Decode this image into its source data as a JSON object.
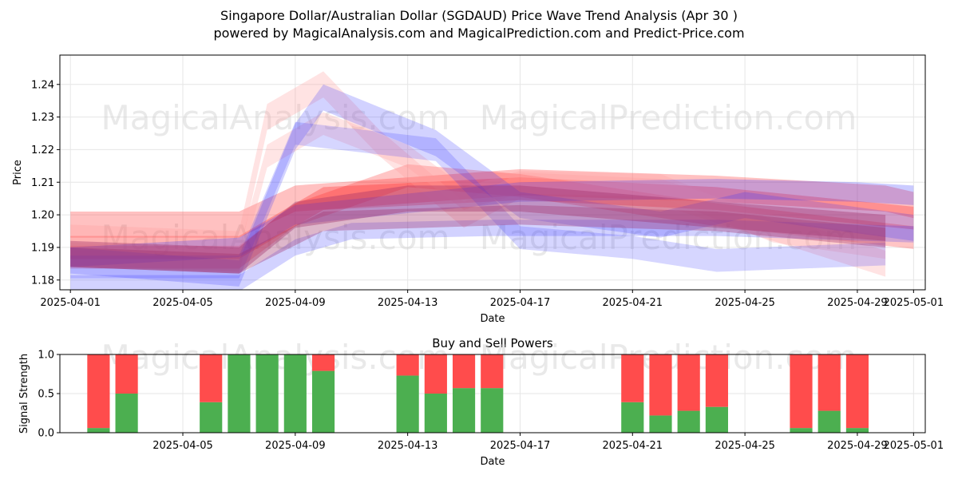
{
  "header": {
    "title": "Singapore Dollar/Australian Dollar (SGDAUD) Price Wave Trend Analysis (Apr 30 )",
    "subtitle": "powered by MagicalAnalysis.com and MagicalPrediction.com and Predict-Price.com"
  },
  "watermarks": {
    "left": "MagicalAnalysis.com",
    "right": "MagicalPrediction.com"
  },
  "colors": {
    "buy": "#4caf50",
    "sell": "#ff4c4c",
    "wave_red": "#ff2020",
    "wave_blue": "#3030ff",
    "wave_pink": "#ff9a9a",
    "grid": "#e6e6e6"
  },
  "chart_data": [
    {
      "type": "area",
      "title": "",
      "xlabel": "Date",
      "ylabel": "Price",
      "x_range": [
        "2025-03-31T15:00",
        "2025-05-01T10:00"
      ],
      "ylim": [
        1.177,
        1.249
      ],
      "x_ticks": [
        "2025-04-01",
        "2025-04-05",
        "2025-04-09",
        "2025-04-13",
        "2025-04-17",
        "2025-04-21",
        "2025-04-25",
        "2025-04-29",
        "2025-05-01"
      ],
      "y_ticks": [
        1.18,
        1.19,
        1.2,
        1.21,
        1.22,
        1.23,
        1.24
      ],
      "grid": true,
      "series": [
        {
          "color": "red",
          "band": 0.008,
          "opacity": 0.28,
          "points": [
            [
              "2025-04-01",
              1.197
            ],
            [
              "2025-04-07",
              1.197
            ],
            [
              "2025-04-09",
              1.205
            ],
            [
              "2025-04-17",
              1.21
            ],
            [
              "2025-04-24",
              1.208
            ],
            [
              "2025-04-30",
              1.205
            ],
            [
              "2025-05-01",
              1.203
            ]
          ]
        },
        {
          "color": "red",
          "band": 0.007,
          "opacity": 0.3,
          "points": [
            [
              "2025-04-01",
              1.19
            ],
            [
              "2025-04-07",
              1.19
            ],
            [
              "2025-04-10",
              1.205
            ],
            [
              "2025-04-17",
              1.208
            ],
            [
              "2025-04-24",
              1.205
            ],
            [
              "2025-05-01",
              1.199
            ]
          ]
        },
        {
          "color": "red",
          "band": 0.007,
          "opacity": 0.26,
          "points": [
            [
              "2025-04-01",
              1.187
            ],
            [
              "2025-04-07",
              1.187
            ],
            [
              "2025-04-09",
              1.2
            ],
            [
              "2025-04-13",
              1.212
            ],
            [
              "2025-04-17",
              1.209
            ],
            [
              "2025-04-24",
              1.2
            ],
            [
              "2025-05-01",
              1.193
            ]
          ]
        },
        {
          "color": "pink",
          "band": 0.008,
          "opacity": 0.28,
          "points": [
            [
              "2025-04-01",
              1.193
            ],
            [
              "2025-04-07",
              1.191
            ],
            [
              "2025-04-08",
              1.23
            ],
            [
              "2025-04-10",
              1.24
            ],
            [
              "2025-04-12",
              1.222
            ],
            [
              "2025-04-15",
              1.2
            ],
            [
              "2025-04-17",
              1.209
            ],
            [
              "2025-04-22",
              1.207
            ],
            [
              "2025-04-30",
              1.185
            ]
          ]
        },
        {
          "color": "pink",
          "band": 0.007,
          "opacity": 0.26,
          "points": [
            [
              "2025-04-01",
              1.188
            ],
            [
              "2025-04-07",
              1.186
            ],
            [
              "2025-04-08",
              1.218
            ],
            [
              "2025-04-10",
              1.228
            ],
            [
              "2025-04-13",
              1.218
            ],
            [
              "2025-04-15",
              1.205
            ],
            [
              "2025-04-17",
              1.21
            ],
            [
              "2025-04-22",
              1.209
            ],
            [
              "2025-04-26",
              1.195
            ],
            [
              "2025-04-30",
              1.19
            ]
          ]
        },
        {
          "color": "blue",
          "band": 0.008,
          "opacity": 0.22,
          "points": [
            [
              "2025-04-01",
              1.186
            ],
            [
              "2025-04-07",
              1.182
            ],
            [
              "2025-04-09",
              1.224
            ],
            [
              "2025-04-10",
              1.236
            ],
            [
              "2025-04-14",
              1.222
            ],
            [
              "2025-04-17",
              1.203
            ],
            [
              "2025-04-22",
              1.197
            ],
            [
              "2025-04-25",
              1.203
            ],
            [
              "2025-05-01",
              1.196
            ]
          ]
        },
        {
          "color": "blue",
          "band": 0.007,
          "opacity": 0.2,
          "points": [
            [
              "2025-04-01",
              1.184
            ],
            [
              "2025-04-07",
              1.184
            ],
            [
              "2025-04-09",
              1.225
            ],
            [
              "2025-04-14",
              1.22
            ],
            [
              "2025-04-17",
              1.193
            ],
            [
              "2025-04-21",
              1.19
            ],
            [
              "2025-04-24",
              1.186
            ],
            [
              "2025-04-30",
              1.188
            ]
          ]
        },
        {
          "color": "blue",
          "band": 0.005,
          "opacity": 0.22,
          "points": [
            [
              "2025-04-01",
              1.179
            ],
            [
              "2025-04-07",
              1.179
            ],
            [
              "2025-04-09",
              1.19
            ],
            [
              "2025-04-11",
              1.195
            ],
            [
              "2025-04-16",
              1.196
            ],
            [
              "2025-04-24",
              1.196
            ],
            [
              "2025-05-01",
              1.194
            ]
          ]
        },
        {
          "color": "blue",
          "band": 0.006,
          "opacity": 0.25,
          "points": [
            [
              "2025-04-01",
              1.187
            ],
            [
              "2025-04-07",
              1.19
            ],
            [
              "2025-04-09",
              1.2
            ],
            [
              "2025-04-17",
              1.207
            ],
            [
              "2025-04-24",
              1.208
            ],
            [
              "2025-04-29",
              1.207
            ],
            [
              "2025-05-01",
              1.206
            ]
          ]
        },
        {
          "color": "purple",
          "band": 0.008,
          "opacity": 0.38,
          "points": [
            [
              "2025-04-01",
              1.188
            ],
            [
              "2025-04-07",
              1.186
            ],
            [
              "2025-04-09",
              1.2
            ],
            [
              "2025-04-13",
              1.205
            ],
            [
              "2025-04-17",
              1.205
            ],
            [
              "2025-04-24",
              1.2
            ],
            [
              "2025-04-30",
              1.196
            ]
          ]
        },
        {
          "color": "purple",
          "band": 0.006,
          "opacity": 0.35,
          "points": [
            [
              "2025-04-01",
              1.187
            ],
            [
              "2025-04-07",
              1.185
            ],
            [
              "2025-04-10",
              1.198
            ],
            [
              "2025-04-17",
              1.2
            ],
            [
              "2025-04-24",
              1.198
            ],
            [
              "2025-04-30",
              1.193
            ]
          ]
        }
      ]
    },
    {
      "type": "bar",
      "title": "Buy and Sell Powers",
      "xlabel": "Date",
      "ylabel": "Signal Strength",
      "ylim": [
        0,
        1.0
      ],
      "y_ticks": [
        0.0,
        0.5,
        1.0
      ],
      "x_ticks": [
        "2025-04-05",
        "2025-04-09",
        "2025-04-13",
        "2025-04-17",
        "2025-04-21",
        "2025-04-25",
        "2025-04-29",
        "2025-05-01"
      ],
      "grid": true,
      "categories": [
        "2025-04-02",
        "2025-04-03",
        "2025-04-06",
        "2025-04-07",
        "2025-04-08",
        "2025-04-09",
        "2025-04-10",
        "2025-04-13",
        "2025-04-14",
        "2025-04-15",
        "2025-04-16",
        "2025-04-21",
        "2025-04-22",
        "2025-04-23",
        "2025-04-24",
        "2025-04-27",
        "2025-04-28",
        "2025-04-29"
      ],
      "series": [
        {
          "name": "Buy",
          "values": [
            0.06,
            0.5,
            0.39,
            1.0,
            1.0,
            1.0,
            0.79,
            0.73,
            0.5,
            0.57,
            0.57,
            0.39,
            0.22,
            0.28,
            0.33,
            0.06,
            0.28,
            0.06
          ]
        },
        {
          "name": "Sell",
          "values": [
            0.94,
            0.5,
            0.61,
            0.0,
            0.0,
            0.0,
            0.21,
            0.27,
            0.5,
            0.43,
            0.43,
            0.61,
            0.78,
            0.72,
            0.67,
            0.94,
            0.72,
            0.94
          ]
        }
      ]
    }
  ]
}
